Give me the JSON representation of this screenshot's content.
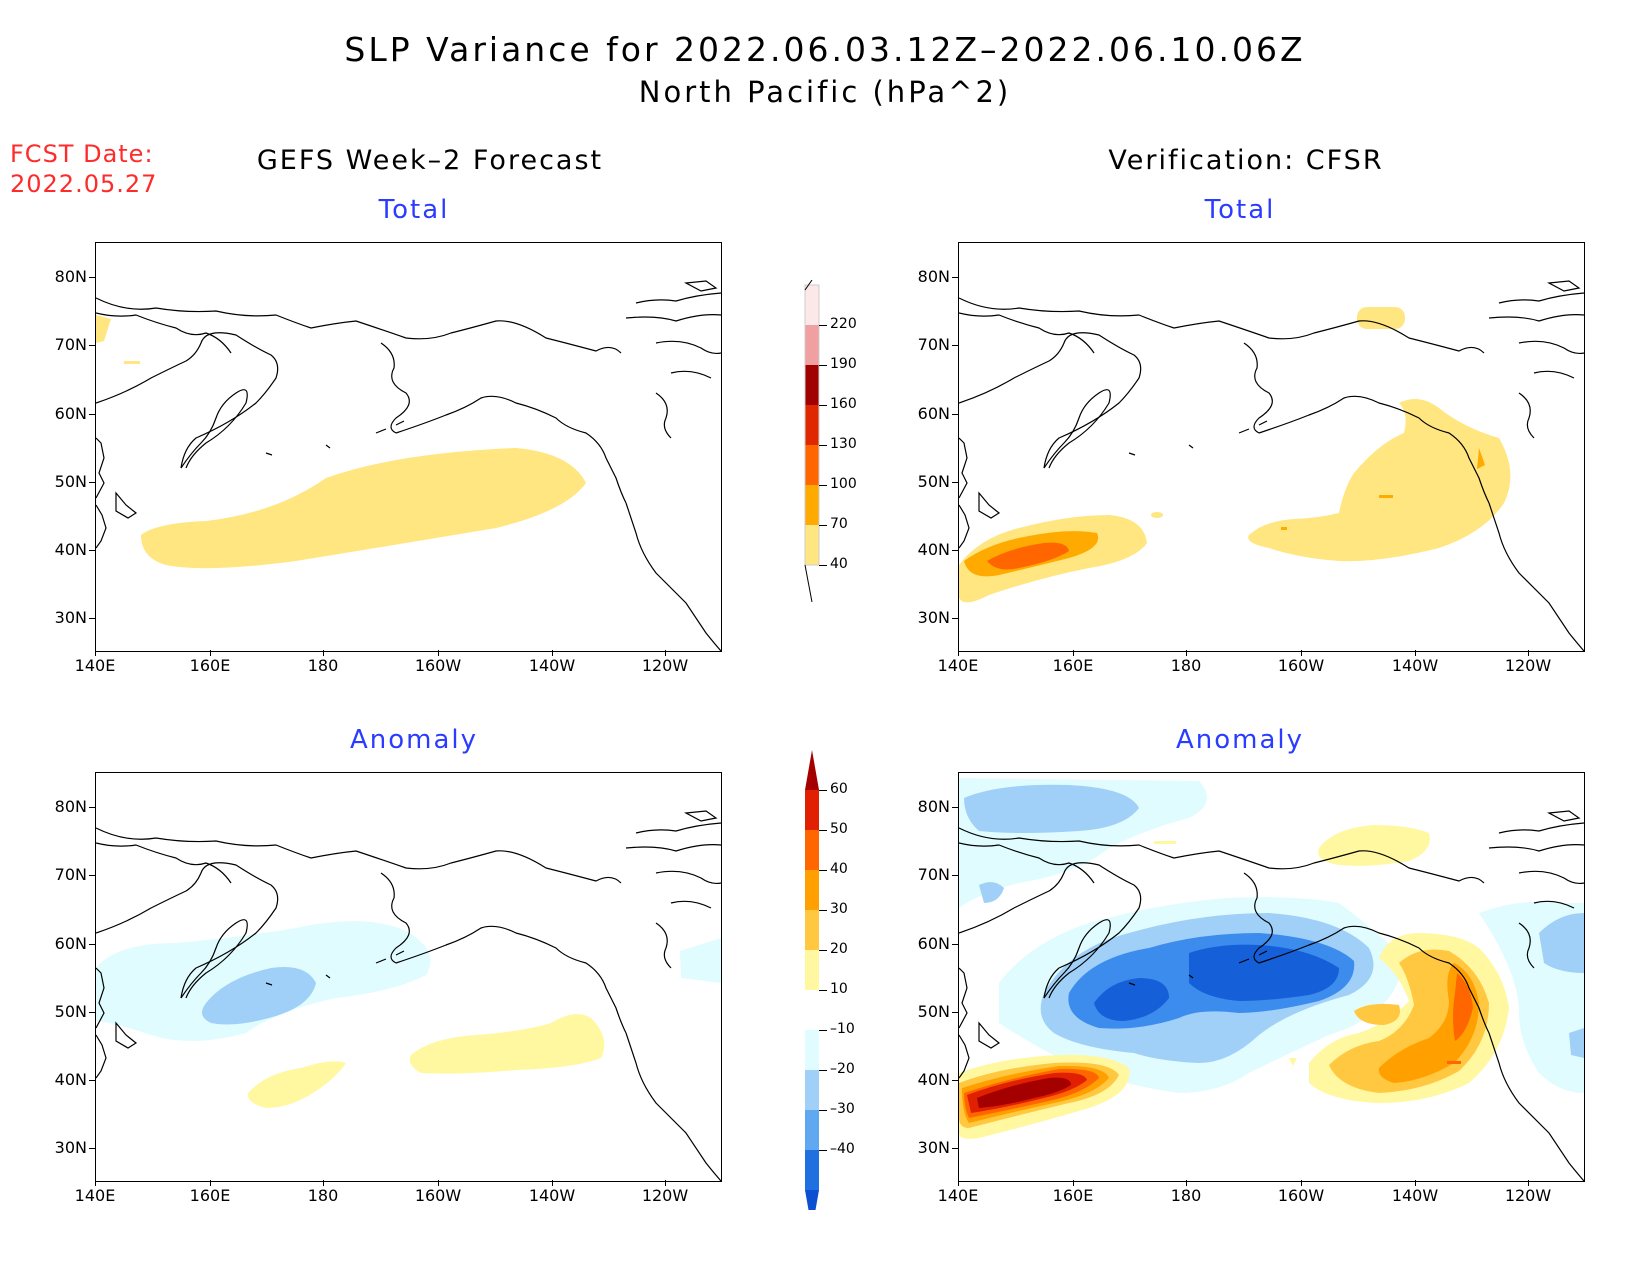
{
  "title": {
    "line1": "SLP Variance for 2022.06.03.12Z–2022.06.10.06Z",
    "line2": "North Pacific (hPa^2)"
  },
  "fcst": {
    "label": "FCST Date:",
    "date": "2022.05.27"
  },
  "columns": {
    "left": "GEFS Week–2 Forecast",
    "right": "Verification: CFSR"
  },
  "rows": {
    "top": "Total",
    "bottom": "Anomaly"
  },
  "axes": {
    "lat_labels": [
      "80N",
      "70N",
      "60N",
      "50N",
      "40N",
      "30N"
    ],
    "lon_labels": [
      "140E",
      "160E",
      "180",
      "160W",
      "140W",
      "120W"
    ]
  },
  "colorbar_total": {
    "levels": [
      "40",
      "70",
      "100",
      "130",
      "160",
      "190",
      "220"
    ],
    "colors": [
      "#ffe680",
      "#ffaa00",
      "#ff6600",
      "#e02800",
      "#a00000",
      "#f0a0a0",
      "#fce8e8"
    ]
  },
  "colorbar_anomaly": {
    "levels": [
      "60",
      "50",
      "40",
      "30",
      "20",
      "10",
      "–10",
      "–20",
      "–30",
      "–40"
    ],
    "colors": [
      "#a50000",
      "#e02000",
      "#ff6600",
      "#ffa000",
      "#ffc840",
      "#fff8a0",
      "#ffffff",
      "#e0fcff",
      "#a0d0f8",
      "#60a8f0",
      "#2070e0",
      "#0a50d0"
    ]
  },
  "map": {
    "lat_range": [
      25,
      85
    ],
    "lon_range": [
      140,
      250
    ],
    "fill_colors": {
      "pos1": "#fff8a0",
      "pos2": "#ffc840",
      "pos3": "#ffa000",
      "pos4": "#ff6600",
      "pos5": "#e02000",
      "pos6": "#a50000",
      "neg1": "#e0fcff",
      "neg2": "#a0d0f8",
      "neg3": "#3c8cee",
      "neg4": "#1560d8",
      "tot40": "#ffe680",
      "tot70": "#ffaa00",
      "tot100": "#ff6600"
    }
  }
}
